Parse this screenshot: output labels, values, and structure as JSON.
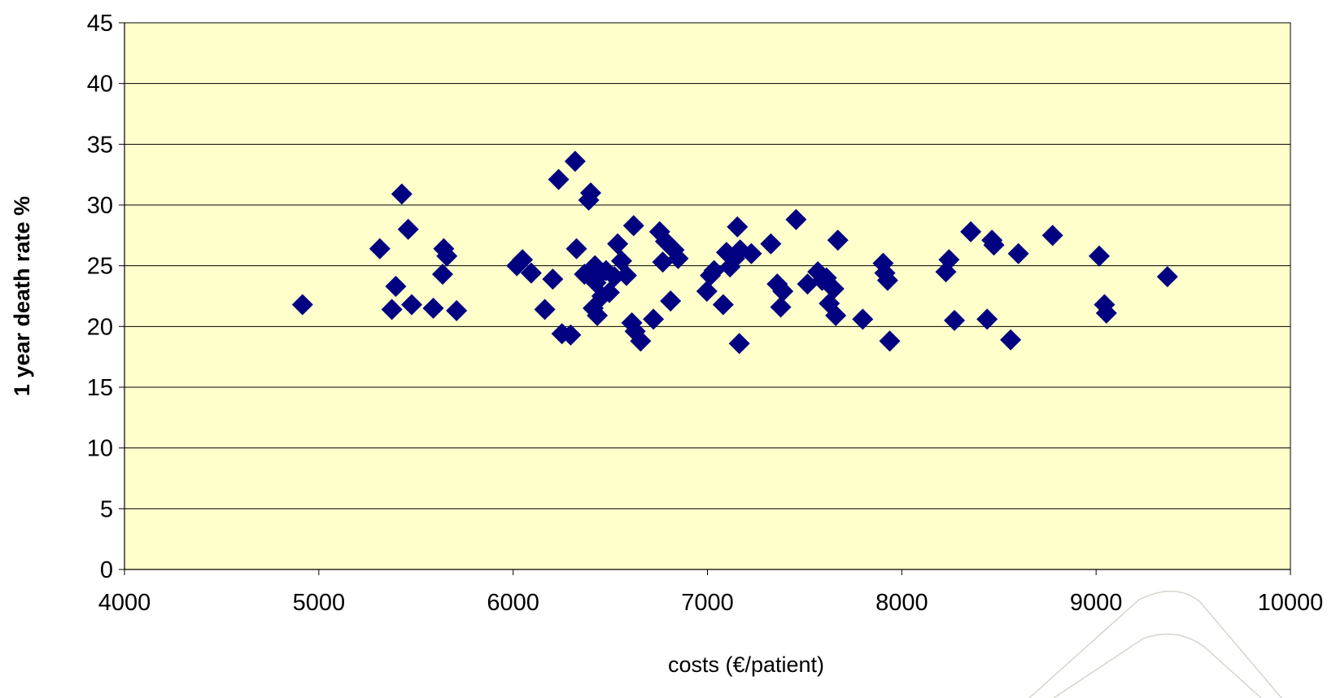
{
  "chart_data": {
    "type": "scatter",
    "title": "",
    "xlabel": "costs (€/patient)",
    "ylabel": "1 year death rate %",
    "xlim": [
      4000,
      10000
    ],
    "ylim": [
      0,
      45
    ],
    "x_ticks": [
      4000,
      5000,
      6000,
      7000,
      8000,
      9000,
      10000
    ],
    "y_ticks": [
      0,
      5,
      10,
      15,
      20,
      25,
      30,
      35,
      40,
      45
    ],
    "grid": "horizontal",
    "legend": "none",
    "marker": "diamond",
    "colors": {
      "marker": "#000080",
      "plot_background": "#FFFFCC",
      "gridline": "#000000"
    },
    "series": [
      {
        "points": [
          [
            4916,
            21.8
          ],
          [
            5314,
            26.4
          ],
          [
            5376,
            21.4
          ],
          [
            5396,
            23.3
          ],
          [
            5427,
            30.9
          ],
          [
            5460,
            28.0
          ],
          [
            5478,
            21.8
          ],
          [
            5589,
            21.5
          ],
          [
            5637,
            24.3
          ],
          [
            5643,
            26.4
          ],
          [
            5659,
            25.8
          ],
          [
            5709,
            21.3
          ],
          [
            6019,
            25.0
          ],
          [
            6048,
            25.5
          ],
          [
            6093,
            24.4
          ],
          [
            6163,
            21.4
          ],
          [
            6204,
            23.9
          ],
          [
            6234,
            32.1
          ],
          [
            6251,
            19.4
          ],
          [
            6296,
            19.3
          ],
          [
            6319,
            33.6
          ],
          [
            6326,
            26.4
          ],
          [
            6367,
            24.3
          ],
          [
            6389,
            30.4
          ],
          [
            6399,
            31.0
          ],
          [
            6412,
            21.5
          ],
          [
            6421,
            25.0
          ],
          [
            6426,
            23.6
          ],
          [
            6433,
            20.9
          ],
          [
            6441,
            24.2
          ],
          [
            6457,
            22.5
          ],
          [
            6478,
            24.6
          ],
          [
            6495,
            22.8
          ],
          [
            6521,
            24.1
          ],
          [
            6538,
            26.8
          ],
          [
            6558,
            25.4
          ],
          [
            6583,
            24.2
          ],
          [
            6611,
            20.3
          ],
          [
            6620,
            28.3
          ],
          [
            6628,
            19.6
          ],
          [
            6656,
            18.8
          ],
          [
            6722,
            20.6
          ],
          [
            6754,
            27.8
          ],
          [
            6770,
            25.3
          ],
          [
            6784,
            27.0
          ],
          [
            6810,
            22.1
          ],
          [
            6828,
            26.3
          ],
          [
            6849,
            25.6
          ],
          [
            6997,
            22.9
          ],
          [
            7015,
            24.2
          ],
          [
            7034,
            24.6
          ],
          [
            7081,
            21.8
          ],
          [
            7098,
            26.1
          ],
          [
            7116,
            24.9
          ],
          [
            7140,
            25.6
          ],
          [
            7154,
            28.2
          ],
          [
            7168,
            26.3
          ],
          [
            7164,
            18.6
          ],
          [
            7226,
            26.0
          ],
          [
            7326,
            26.8
          ],
          [
            7359,
            23.5
          ],
          [
            7377,
            21.6
          ],
          [
            7388,
            22.9
          ],
          [
            7456,
            28.8
          ],
          [
            7515,
            23.5
          ],
          [
            7568,
            24.5
          ],
          [
            7590,
            23.8
          ],
          [
            7612,
            24.0
          ],
          [
            7627,
            21.9
          ],
          [
            7650,
            23.1
          ],
          [
            7660,
            20.9
          ],
          [
            7671,
            27.1
          ],
          [
            7799,
            20.6
          ],
          [
            7904,
            25.2
          ],
          [
            7913,
            24.4
          ],
          [
            7927,
            23.8
          ],
          [
            7938,
            18.8
          ],
          [
            8227,
            24.5
          ],
          [
            8243,
            25.5
          ],
          [
            8271,
            20.5
          ],
          [
            8355,
            27.8
          ],
          [
            8439,
            20.6
          ],
          [
            8464,
            27.1
          ],
          [
            8474,
            26.7
          ],
          [
            8560,
            18.9
          ],
          [
            8600,
            26.0
          ],
          [
            8776,
            27.5
          ],
          [
            9016,
            25.8
          ],
          [
            9043,
            21.8
          ],
          [
            9053,
            21.1
          ],
          [
            9367,
            24.1
          ]
        ]
      }
    ]
  }
}
